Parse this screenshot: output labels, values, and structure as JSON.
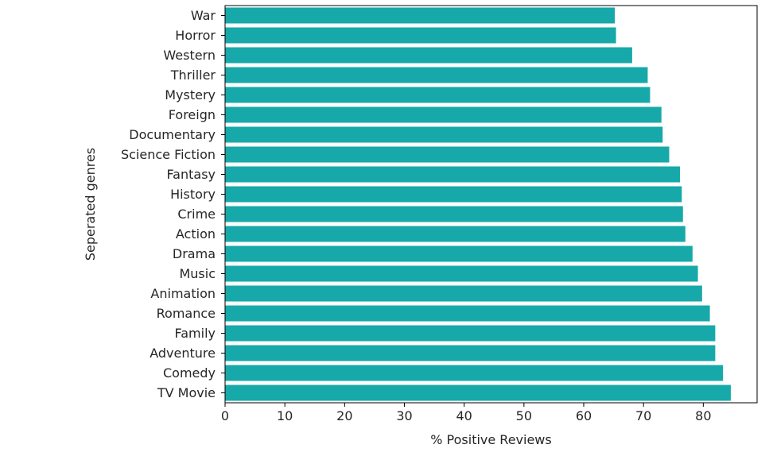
{
  "chart_data": {
    "type": "bar",
    "orientation": "horizontal",
    "title": "",
    "xlabel": "% Positive Reviews",
    "ylabel": "Seperated genres",
    "xlim": [
      0,
      89
    ],
    "x_ticks": [
      0,
      10,
      20,
      30,
      40,
      50,
      60,
      70,
      80
    ],
    "grid": false,
    "bar_color": "#17a9a9",
    "categories": [
      "War",
      "Horror",
      "Western",
      "Thriller",
      "Mystery",
      "Foreign",
      "Documentary",
      "Science Fiction",
      "Fantasy",
      "History",
      "Crime",
      "Action",
      "Drama",
      "Music",
      "Animation",
      "Romance",
      "Family",
      "Adventure",
      "Comedy",
      "TV Movie"
    ],
    "values": [
      65.2,
      65.4,
      68.1,
      70.7,
      71.1,
      73.0,
      73.2,
      74.3,
      76.1,
      76.4,
      76.6,
      77.0,
      78.2,
      79.1,
      79.8,
      81.1,
      82.0,
      82.0,
      83.3,
      84.6
    ]
  }
}
